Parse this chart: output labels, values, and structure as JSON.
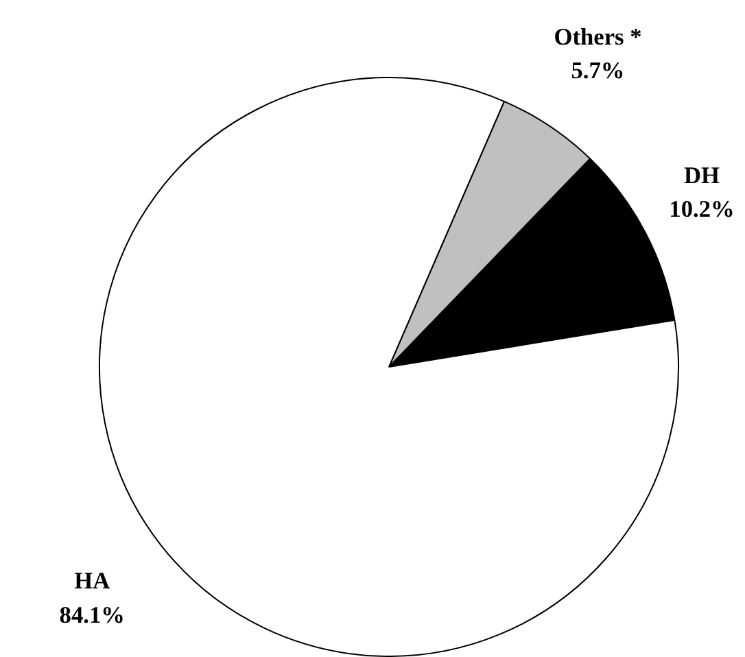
{
  "chart_data": {
    "type": "pie",
    "categories": [
      "DH",
      "Others *",
      "HA"
    ],
    "values": [
      10.2,
      5.7,
      84.1
    ],
    "colors": [
      "#000000",
      "#c0c0c0",
      "#ffffff"
    ],
    "value_labels": [
      "10.2%",
      "5.7%",
      "84.1%"
    ]
  }
}
